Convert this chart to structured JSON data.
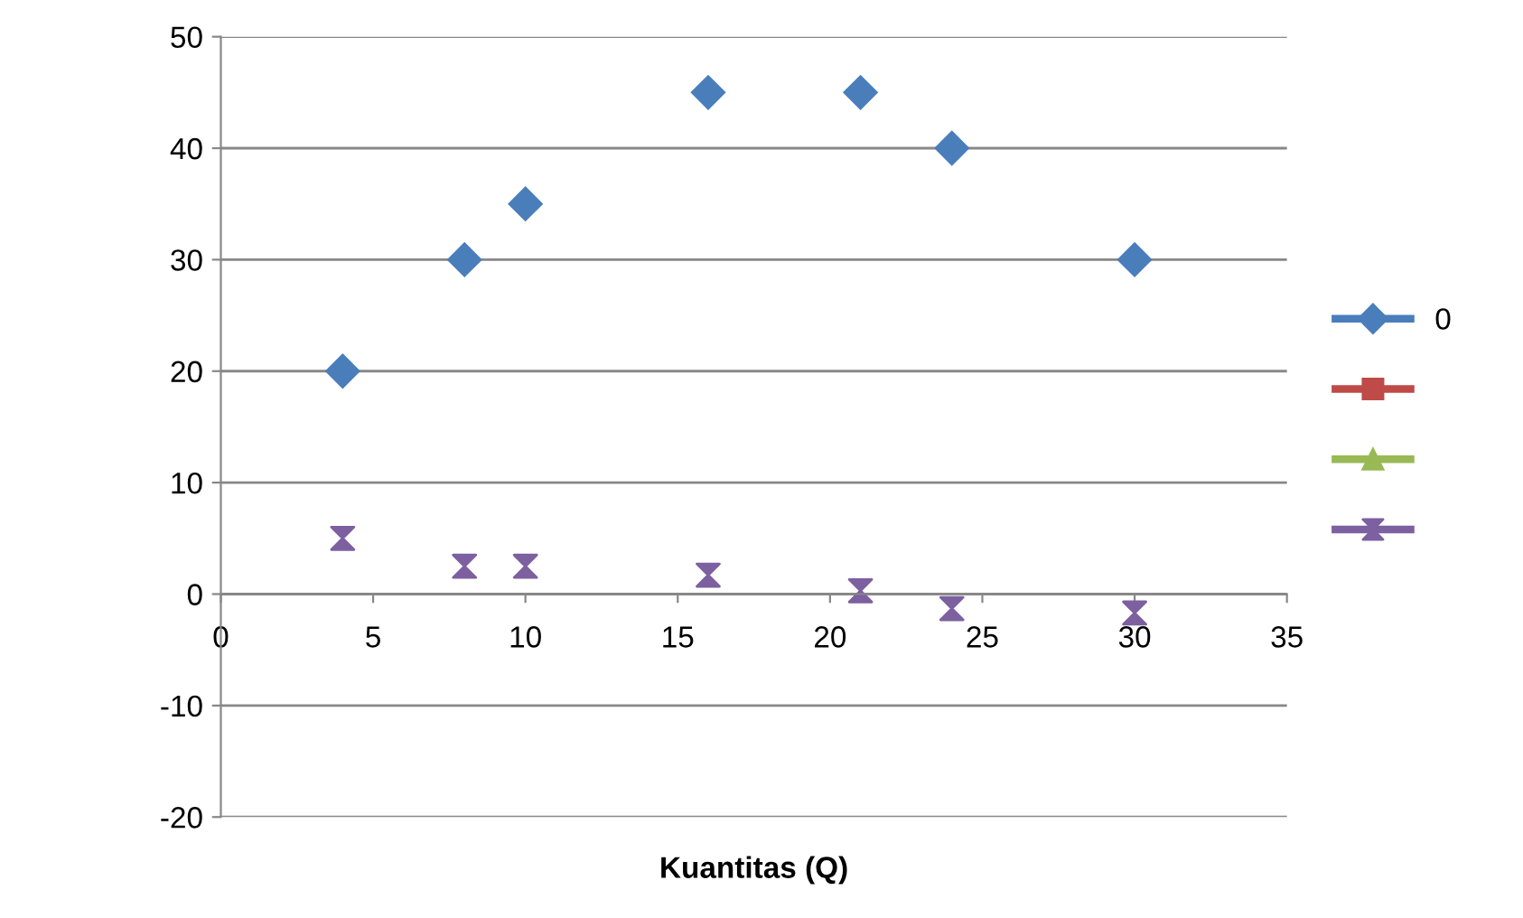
{
  "chart_data": {
    "type": "scatter",
    "xlabel": "Kuantitas (Q)",
    "xlim": [
      0,
      35
    ],
    "ylim": [
      -20,
      50
    ],
    "xticks": [
      0,
      5,
      10,
      15,
      20,
      25,
      30,
      35
    ],
    "yticks": [
      -20,
      -10,
      0,
      10,
      20,
      30,
      40,
      50
    ],
    "grid": "y",
    "legend": "right",
    "x": [
      4,
      8,
      10,
      16,
      21,
      24,
      30
    ],
    "series": [
      {
        "name": "0",
        "color": "#4a7ebb",
        "marker": "diamond",
        "values": [
          20,
          30,
          35,
          45,
          45,
          40,
          30
        ]
      },
      {
        "color": "#be4b48",
        "marker": "square",
        "values": [
          null,
          null,
          null,
          null,
          null,
          null,
          null
        ]
      },
      {
        "color": "#98b954",
        "marker": "triangle",
        "values": [
          null,
          null,
          null,
          null,
          null,
          null,
          null
        ]
      },
      {
        "color": "#7d60a0",
        "marker": "cross",
        "values": [
          5,
          2.5,
          2.5,
          1.7,
          0.3,
          -1.3,
          -1.7
        ]
      }
    ]
  }
}
